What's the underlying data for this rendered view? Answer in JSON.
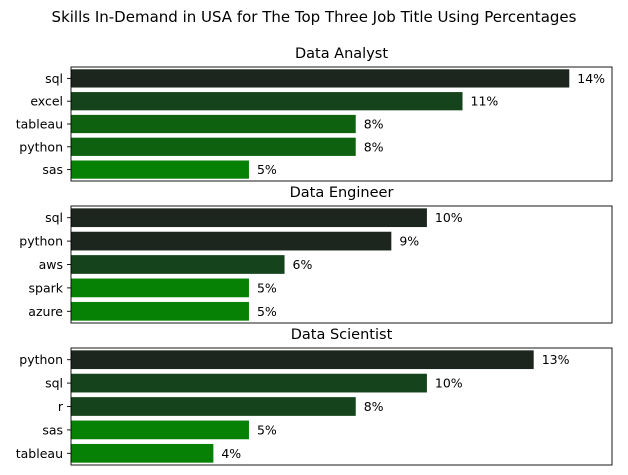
{
  "figure_title": "Skills In-Demand in USA for The Top Three Job Title Using Percentages",
  "colors": [
    "#1d261e",
    "#15431b",
    "#0e620f",
    "#0a6e0b",
    "#078006"
  ],
  "chart_data": [
    {
      "type": "bar",
      "orientation": "horizontal",
      "title": "Data Analyst",
      "categories": [
        "sql",
        "excel",
        "tableau",
        "python",
        "sas"
      ],
      "values": [
        14,
        11,
        8,
        8,
        5
      ],
      "value_labels": [
        "14%",
        "11%",
        "8%",
        "8%",
        "5%"
      ],
      "xlim": [
        0,
        15.2
      ],
      "colors": [
        "#1d261e",
        "#15431b",
        "#0e620f",
        "#0e620f",
        "#078006"
      ],
      "xlabel": "",
      "ylabel": "",
      "grid": false
    },
    {
      "type": "bar",
      "orientation": "horizontal",
      "title": "Data Engineer",
      "categories": [
        "sql",
        "python",
        "aws",
        "spark",
        "azure"
      ],
      "values": [
        10,
        9,
        6,
        5,
        5
      ],
      "value_labels": [
        "10%",
        "9%",
        "6%",
        "5%",
        "5%"
      ],
      "xlim": [
        0,
        15.2
      ],
      "colors": [
        "#1d261e",
        "#1d261e",
        "#15431b",
        "#078006",
        "#078006"
      ],
      "xlabel": "",
      "ylabel": "",
      "grid": false
    },
    {
      "type": "bar",
      "orientation": "horizontal",
      "title": "Data Scientist",
      "categories": [
        "python",
        "sql",
        "r",
        "sas",
        "tableau"
      ],
      "values": [
        13,
        10,
        8,
        5,
        4
      ],
      "value_labels": [
        "13%",
        "10%",
        "8%",
        "5%",
        "4%"
      ],
      "xlim": [
        0,
        15.2
      ],
      "colors": [
        "#1d261e",
        "#15431b",
        "#15431b",
        "#078006",
        "#078006"
      ],
      "xlabel": "",
      "ylabel": "",
      "grid": false
    }
  ]
}
